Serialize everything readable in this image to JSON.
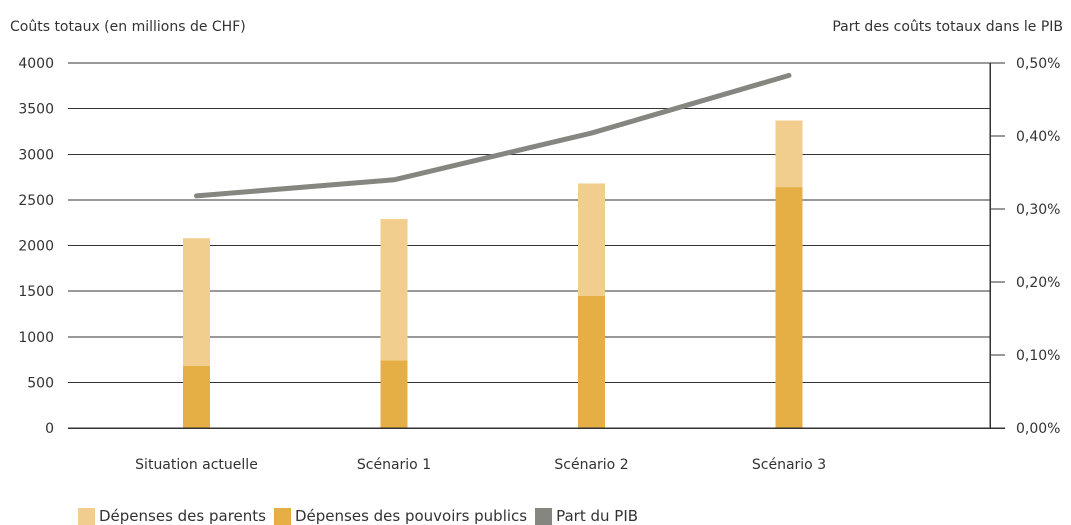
{
  "chart_data": {
    "type": "bar",
    "stacked": true,
    "categories": [
      "Situation actuelle",
      "Scénario 1",
      "Scénario 2",
      "Scénario 3"
    ],
    "series": [
      {
        "name": "Dépenses des pouvoirs publics",
        "type": "bar",
        "axis": "left",
        "color": "#E5AF45",
        "values": [
          680,
          740,
          1450,
          2640
        ]
      },
      {
        "name": "Dépenses des parents",
        "type": "bar",
        "axis": "left",
        "color": "#F2CE8E",
        "values": [
          1400,
          1550,
          1230,
          730
        ]
      },
      {
        "name": "Part du PIB",
        "type": "line",
        "axis": "right",
        "color": "#868681",
        "values": [
          0.318,
          0.34,
          0.404,
          0.483
        ]
      }
    ],
    "ylabel": "Coûts totaux (en millions de CHF)",
    "y2label": "Part des coûts totaux dans le PIB",
    "ylim": [
      0,
      4000
    ],
    "yticks": [
      "0",
      "500",
      "1000",
      "1500",
      "2000",
      "2500",
      "3000",
      "3500",
      "4000"
    ],
    "y2lim": [
      0,
      0.5
    ],
    "y2ticks": [
      "0,00%",
      "0,10%",
      "0,20%",
      "0,30%",
      "0,40%",
      "0,50%"
    ],
    "grid": true,
    "legend_position": "bottom-left"
  },
  "legend": {
    "items": [
      {
        "label": "Dépenses des parents",
        "color": "#F2CE8E"
      },
      {
        "label": "Dépenses des pouvoirs publics",
        "color": "#E5AF45"
      },
      {
        "label": "Part du PIB",
        "color": "#868681"
      }
    ]
  }
}
